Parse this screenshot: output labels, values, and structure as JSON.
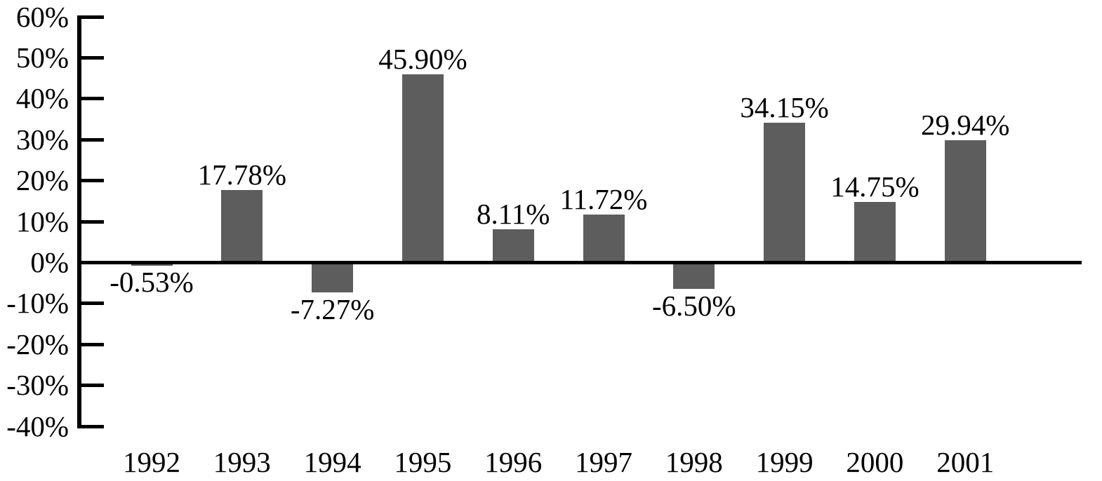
{
  "chart_data": {
    "type": "bar",
    "title": "",
    "xlabel": "",
    "ylabel": "",
    "categories": [
      "1992",
      "1993",
      "1994",
      "1995",
      "1996",
      "1997",
      "1998",
      "1999",
      "2000",
      "2001"
    ],
    "values": [
      -0.53,
      17.78,
      -7.27,
      45.9,
      8.11,
      11.72,
      -6.5,
      34.15,
      14.75,
      29.94
    ],
    "data_labels": [
      "-0.53%",
      "17.78%",
      "-7.27%",
      "45.90%",
      "8.11%",
      "11.72%",
      "-6.50%",
      "34.15%",
      "14.75%",
      "29.94%"
    ],
    "y_axis": {
      "tick_labels": [
        "60%",
        "50%",
        "40%",
        "30%",
        "20%",
        "10%",
        "0%",
        "-10%",
        "-20%",
        "-30%",
        "-40%"
      ],
      "tick_values": [
        60,
        50,
        40,
        30,
        20,
        10,
        0,
        -10,
        -20,
        -30,
        -40
      ],
      "min": -40,
      "max": 60,
      "step": 10
    },
    "ylim": [
      -40,
      60
    ],
    "grid": false,
    "legend": null,
    "bar_color": "#5d5d5d",
    "axis_color": "#000000",
    "background": "#ffffff",
    "tick_style": "inside"
  }
}
